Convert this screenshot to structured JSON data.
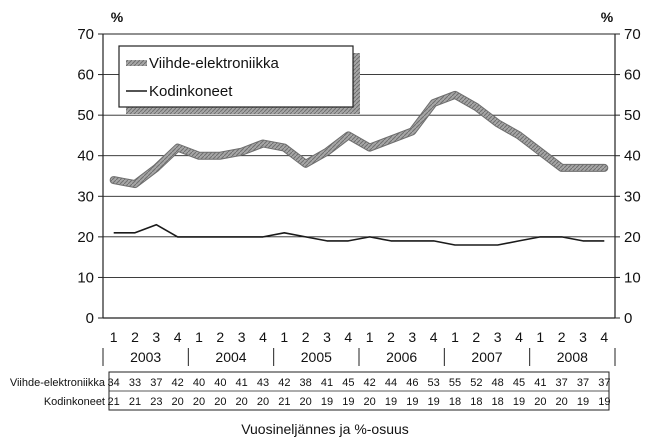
{
  "chart_data": {
    "type": "line",
    "unit_label": "%",
    "ylim": [
      0,
      70
    ],
    "yticks": [
      0,
      10,
      20,
      30,
      40,
      50,
      60,
      70
    ],
    "grid": true,
    "legend_position": "top-left",
    "years": [
      "2003",
      "2004",
      "2005",
      "2006",
      "2007",
      "2008"
    ],
    "quarters": [
      "1",
      "2",
      "3",
      "4",
      "1",
      "2",
      "3",
      "4",
      "1",
      "2",
      "3",
      "4",
      "1",
      "2",
      "3",
      "4",
      "1",
      "2",
      "3",
      "4",
      "1",
      "2",
      "3",
      "4"
    ],
    "series": [
      {
        "name": "Viihde-elektroniikka",
        "color": "#8c8c8c",
        "values": [
          34,
          33,
          37,
          42,
          40,
          40,
          41,
          43,
          42,
          38,
          41,
          45,
          42,
          44,
          46,
          53,
          55,
          52,
          48,
          45,
          41,
          37,
          37,
          37
        ]
      },
      {
        "name": "Kodinkoneet",
        "color": "#1a1a1a",
        "values": [
          21,
          21,
          23,
          20,
          20,
          20,
          20,
          20,
          21,
          20,
          19,
          19,
          20,
          19,
          19,
          19,
          18,
          18,
          18,
          19,
          20,
          20,
          19,
          19
        ]
      }
    ],
    "xlabel": "Vuosineljännes ja %-osuus"
  }
}
